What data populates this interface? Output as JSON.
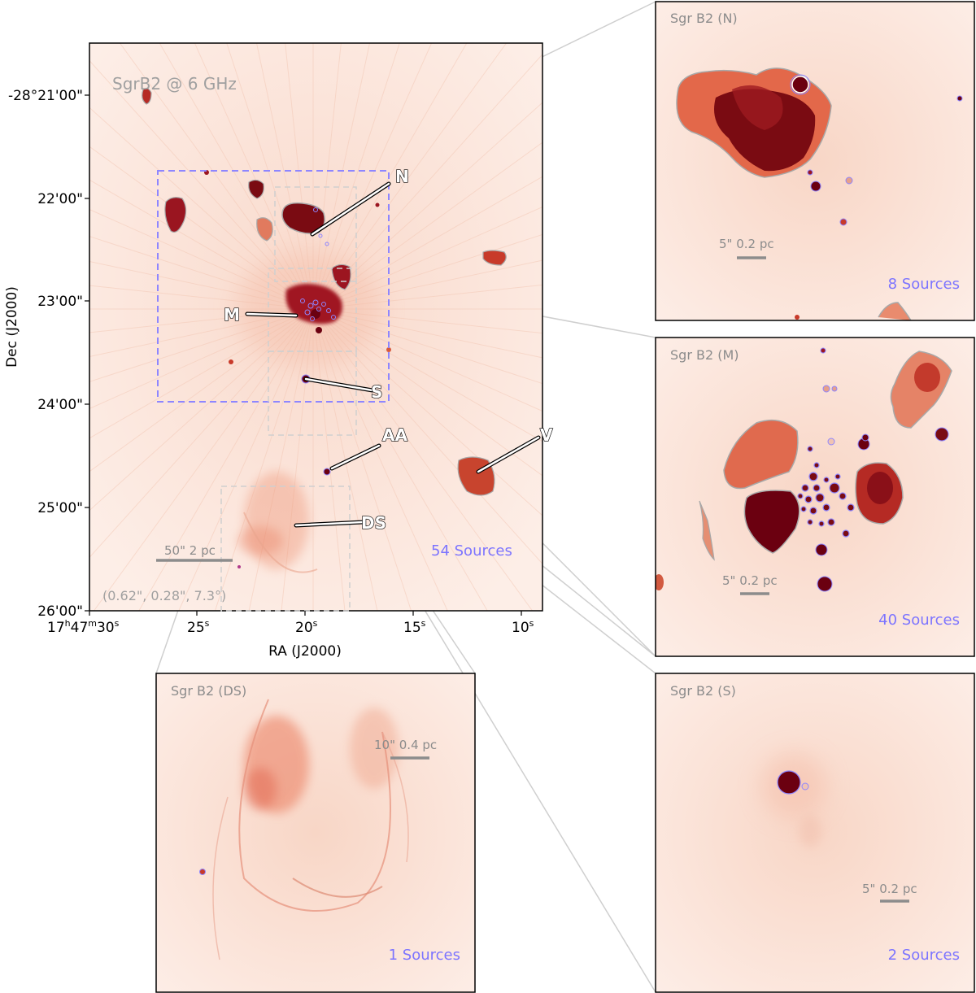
{
  "main_panel": {
    "title": "SgrB2 @ 6 GHz",
    "sources_count": "54 Sources",
    "scalebar": "50\" 2 pc",
    "beam": "(0.62\", 0.28\",  7.3°)",
    "yaxis_label": "Dec (J2000)",
    "xaxis_label": "RA (J2000)",
    "dec_ticks": [
      "-28°21'00\"",
      "22'00\"",
      "23'00\"",
      "24'00\"",
      "25'00\"",
      "26'00\""
    ],
    "ra_ticks": [
      {
        "major": "17",
        "h": "h",
        "min": "47",
        "m": "m",
        "sec": "30",
        "s": "s"
      },
      {
        "sec": "25",
        "s": "s"
      },
      {
        "sec": "20",
        "s": "s"
      },
      {
        "sec": "15",
        "s": "s"
      },
      {
        "sec": "10",
        "s": "s"
      }
    ],
    "region_labels": [
      "N",
      "M",
      "S",
      "AA",
      "V",
      "DS"
    ]
  },
  "insets": {
    "n": {
      "title": "Sgr B2 (N)",
      "scalebar": "5\" 0.2 pc",
      "sources": "8 Sources"
    },
    "m": {
      "title": "Sgr B2 (M)",
      "scalebar": "5\" 0.2 pc",
      "sources": "40 Sources"
    },
    "ds": {
      "title": "Sgr B2 (DS)",
      "scalebar": "10\" 0.4 pc",
      "sources": "1 Sources"
    },
    "s": {
      "title": "Sgr B2 (S)",
      "scalebar": "5\" 0.2 pc",
      "sources": "2 Sources"
    }
  },
  "colors": {
    "background_wash": "#fbe6dc",
    "emission_light": "#ef8a6a",
    "emission_mid": "#c83a2a",
    "emission_dark": "#6b0010",
    "contour": "#a8a8a8",
    "source_circle": "#8e86ff",
    "dashed_box": "#8e86ff",
    "annotation_text": "#8c8c8c",
    "sources_text": "#7c74ff"
  }
}
